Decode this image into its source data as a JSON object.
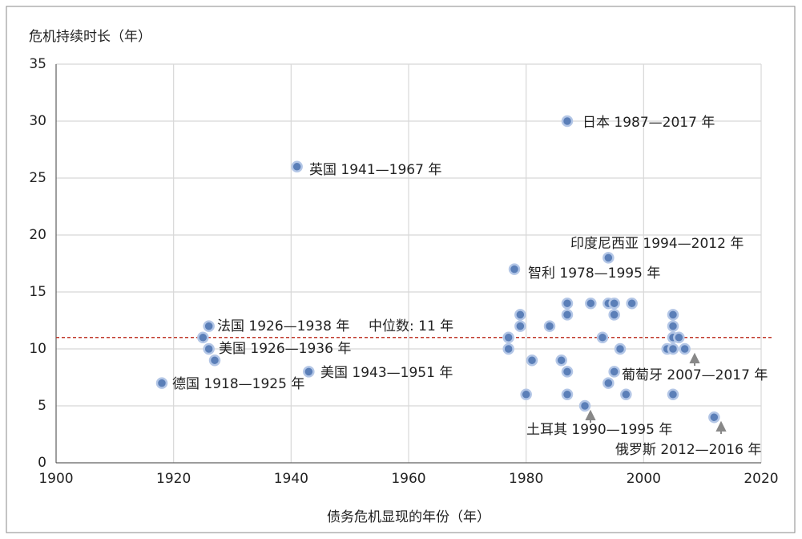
{
  "chart_data": {
    "type": "scatter",
    "y_title": "危机持续时长（年）",
    "x_title": "债务危机显现的年份（年）",
    "x": [
      1918,
      1925,
      1926,
      1926,
      1927,
      1941,
      1943,
      1987,
      1994,
      1978,
      1977,
      1977,
      1979,
      1979,
      1980,
      1981,
      1984,
      1986,
      1987,
      1987,
      1987,
      1987,
      1990,
      1991,
      1993,
      1994,
      1994,
      1995,
      1995,
      1995,
      1996,
      1997,
      1998,
      2004,
      2005,
      2005,
      2005,
      2005,
      2005,
      2006,
      2007,
      2012
    ],
    "values": [
      7,
      11,
      10,
      12,
      9,
      26,
      8,
      30,
      18,
      17,
      11,
      10,
      13,
      12,
      6,
      9,
      12,
      9,
      14,
      13,
      8,
      6,
      5,
      14,
      11,
      14,
      7,
      14,
      13,
      8,
      10,
      6,
      14,
      10,
      13,
      12,
      11,
      10,
      6,
      11,
      10,
      4
    ],
    "color": "#5b7fb8",
    "annotations": [
      "日本 1987—2017 年",
      "英国 1941—1967 年",
      "印度尼西亚 1994—2012 年",
      "智利 1978—1995 年",
      "法国 1926—1938 年",
      "美国 1926—1936 年",
      "美国 1943—1951 年",
      "德国 1918—1925 年",
      "葡萄牙 2007—2017 年",
      "土耳其 1990—1995 年",
      "俄罗斯 2012—2016 年"
    ],
    "median": 11,
    "median_label": "中位数: 11 年",
    "xlim": [
      1900,
      2020
    ],
    "xticks": [
      1900,
      1920,
      1940,
      1960,
      1980,
      2000,
      2020
    ],
    "ylim": [
      0,
      35
    ],
    "yticks": [
      0,
      5,
      10,
      15,
      20,
      25,
      30,
      35
    ],
    "grid": true
  }
}
